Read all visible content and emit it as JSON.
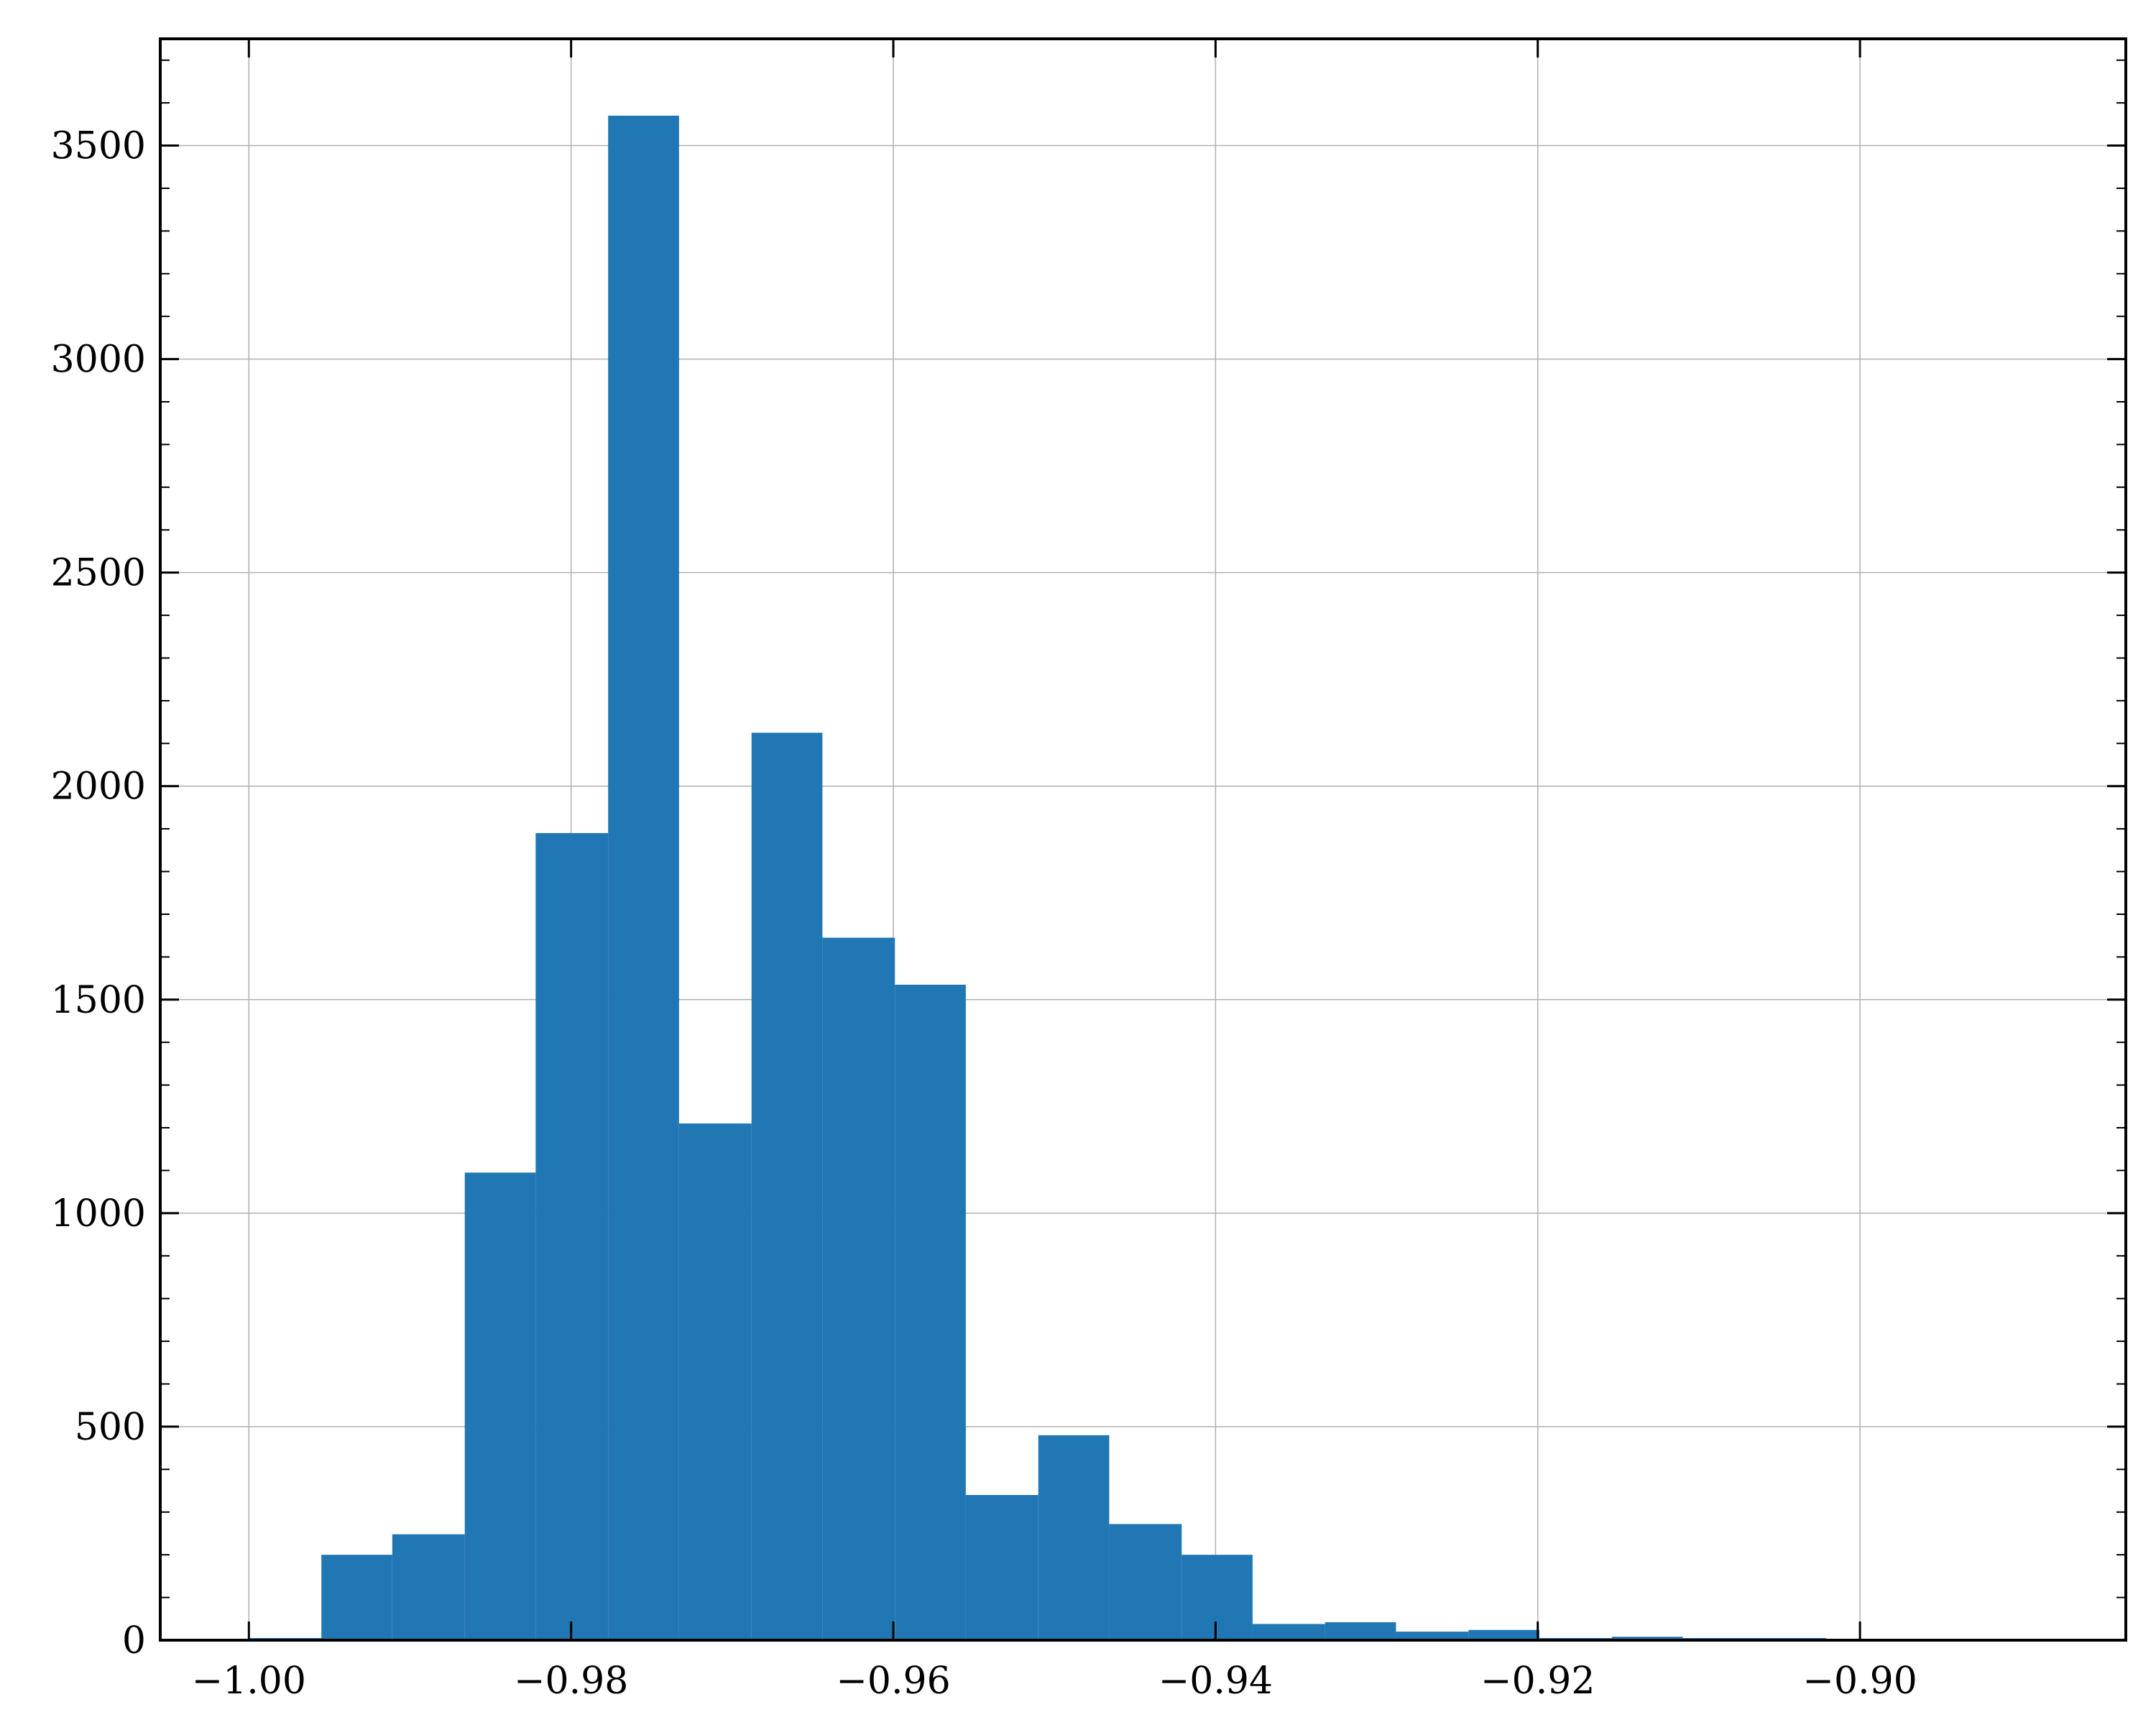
{
  "chart_data": {
    "type": "bar",
    "title": "",
    "xlabel": "",
    "ylabel": "",
    "xlim": [
      -1.0055,
      -0.8835
    ],
    "ylim": [
      0,
      3750
    ],
    "grid": true,
    "bin_edges": [
      -1.0,
      -0.9955,
      -0.9911,
      -0.9866,
      -0.9822,
      -0.9777,
      -0.9733,
      -0.9688,
      -0.9644,
      -0.9599,
      -0.9555,
      -0.951,
      -0.9466,
      -0.9421,
      -0.9377,
      -0.9332,
      -0.9288,
      -0.9243,
      -0.9199,
      -0.9154,
      -0.911,
      -0.9065,
      -0.9021
    ],
    "values": [
      5,
      200,
      248,
      1095,
      1890,
      3570,
      1210,
      2125,
      1645,
      1535,
      340,
      480,
      272,
      200,
      38,
      42,
      20,
      24,
      5,
      8,
      5,
      5
    ],
    "x_ticks": [
      {
        "value": -1.0,
        "label": "−1.00"
      },
      {
        "value": -0.98,
        "label": "−0.98"
      },
      {
        "value": -0.96,
        "label": "−0.96"
      },
      {
        "value": -0.94,
        "label": "−0.94"
      },
      {
        "value": -0.92,
        "label": "−0.92"
      },
      {
        "value": -0.9,
        "label": "−0.90"
      }
    ],
    "y_ticks": [
      {
        "value": 0,
        "label": "0"
      },
      {
        "value": 500,
        "label": "500"
      },
      {
        "value": 1000,
        "label": "1000"
      },
      {
        "value": 1500,
        "label": "1500"
      },
      {
        "value": 2000,
        "label": "2000"
      },
      {
        "value": 2500,
        "label": "2500"
      },
      {
        "value": 3000,
        "label": "3000"
      },
      {
        "value": 3500,
        "label": "3500"
      }
    ],
    "colors": {
      "bar": "#2077b4",
      "grid": "#b0b0b0",
      "axis": "#000000"
    }
  }
}
